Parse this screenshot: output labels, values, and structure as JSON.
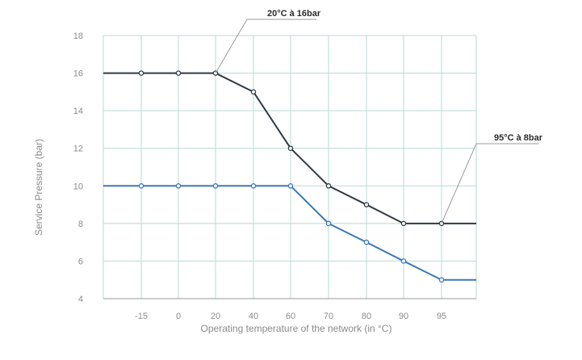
{
  "chart_data": {
    "type": "line",
    "categories": [
      "-15",
      "0",
      "20",
      "40",
      "60",
      "70",
      "80",
      "90",
      "95"
    ],
    "ylabel": "Service Pressure (bar)",
    "xlabel": "Operating temperature of the network (in °C)",
    "ylim": [
      4,
      18
    ],
    "yticks": [
      4,
      6,
      8,
      10,
      12,
      14,
      16,
      18
    ],
    "grid": true,
    "series": [
      {
        "values": [
          16,
          16,
          16,
          15,
          12,
          10,
          9,
          8,
          8
        ],
        "start_value": 16,
        "end_value": 8,
        "color": "#2f3a42"
      },
      {
        "values": [
          10,
          10,
          10,
          10,
          10,
          8,
          7,
          6,
          5
        ],
        "start_value": 10,
        "end_value": 5,
        "color": "#3a78b8"
      }
    ],
    "annotations": [
      {
        "text": "20°C à 16bar",
        "category": "20",
        "value": 16
      },
      {
        "text": "95°C à 8bar",
        "category": "95",
        "value": 8
      }
    ],
    "colors": {
      "grid": "#b9d9d5",
      "axis": "#9a9a9a",
      "marker_fill": "#ffffff"
    }
  }
}
